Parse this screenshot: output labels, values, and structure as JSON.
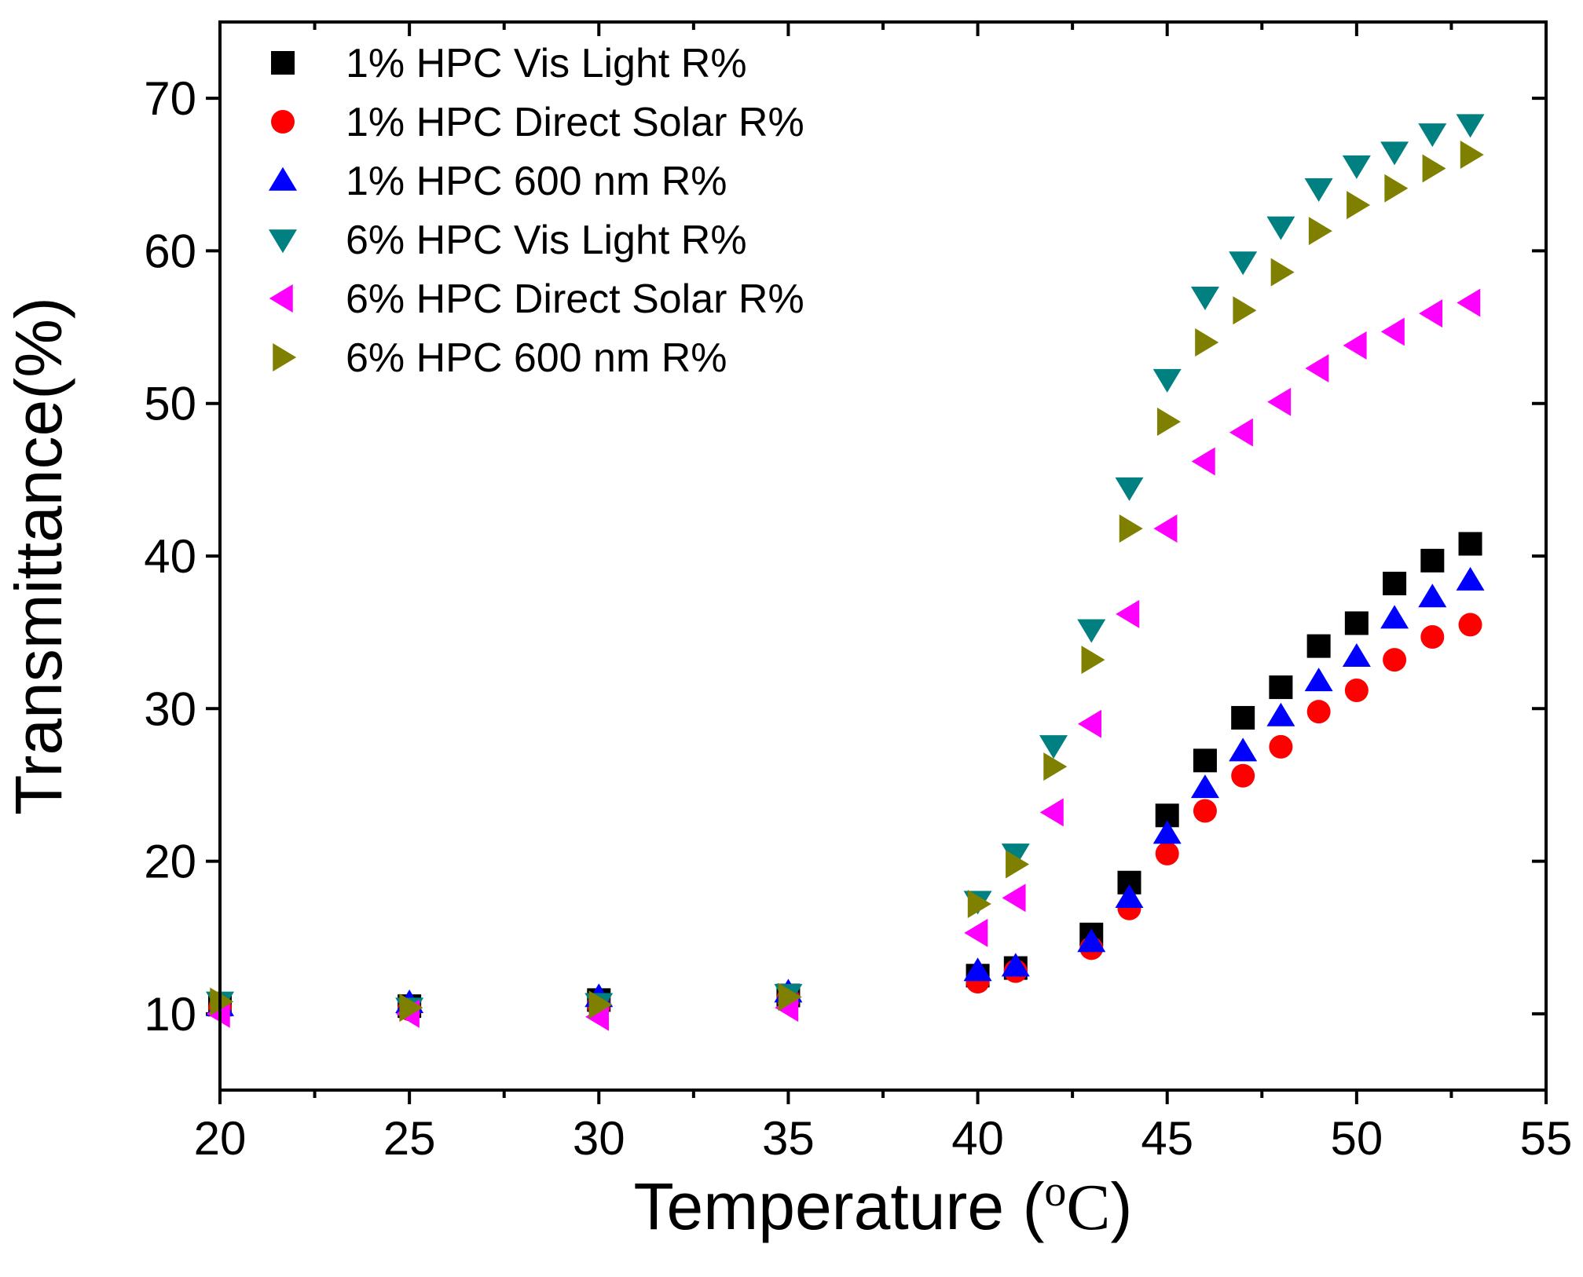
{
  "chart_data": {
    "type": "scatter",
    "xlabel": "Temperature (",
    "xlabel_unit_sup": "o",
    "xlabel_unit": "C",
    "xlabel_close": ")",
    "ylabel": "Transmittance(%)",
    "xlim": [
      20,
      55
    ],
    "ylim": [
      5,
      75
    ],
    "x_ticks": [
      20,
      25,
      30,
      35,
      40,
      45,
      50,
      55
    ],
    "y_ticks": [
      10,
      20,
      30,
      40,
      50,
      60,
      70
    ],
    "legend_position": "top-left",
    "x": [
      20,
      25,
      30,
      35,
      40,
      41,
      43,
      44,
      45,
      46,
      47,
      48,
      49,
      50,
      51,
      52,
      53
    ],
    "series": [
      {
        "name": "1% HPC Vis Light R%",
        "marker": "square",
        "color": "#000000",
        "values": [
          10.6,
          10.5,
          10.9,
          11.2,
          12.5,
          13.0,
          15.2,
          18.6,
          23.0,
          26.6,
          29.4,
          31.4,
          34.1,
          35.6,
          38.2,
          39.7,
          40.8
        ]
      },
      {
        "name": "1% HPC Direct Solar R%",
        "marker": "circle",
        "color": "#ff0000",
        "values": [
          10.4,
          10.3,
          10.6,
          11.0,
          12.1,
          12.8,
          14.3,
          16.9,
          20.5,
          23.3,
          25.6,
          27.5,
          29.8,
          31.2,
          33.2,
          34.7,
          35.5
        ]
      },
      {
        "name": "1% HPC 600 nm R%",
        "marker": "triangle-up",
        "color": "#0000ff",
        "values": [
          10.5,
          10.7,
          11.1,
          11.4,
          12.8,
          13.1,
          14.7,
          17.6,
          21.8,
          24.8,
          27.2,
          29.5,
          31.8,
          33.4,
          35.9,
          37.3,
          38.4
        ]
      },
      {
        "name": "6% HPC Vis Light R%",
        "marker": "triangle-down",
        "color": "#008080",
        "values": [
          10.8,
          10.4,
          10.7,
          11.3,
          17.4,
          20.5,
          35.2,
          44.5,
          51.6,
          57.0,
          59.3,
          61.6,
          64.1,
          65.6,
          66.5,
          67.7,
          68.3
        ]
      },
      {
        "name": "6% HPC Direct Solar R%",
        "marker": "triangle-left",
        "color": "#ff00ff",
        "values": [
          10.0,
          10.0,
          9.8,
          10.4,
          15.3,
          17.6,
          29.0,
          36.2,
          41.8,
          46.2,
          48.1,
          50.1,
          52.3,
          53.8,
          54.7,
          55.9,
          56.6
        ]
      },
      {
        "name": "6% HPC 600 nm R%",
        "marker": "triangle-right",
        "color": "#808000",
        "values": [
          10.8,
          10.4,
          10.6,
          11.1,
          17.2,
          19.8,
          33.2,
          41.8,
          48.8,
          54.0,
          56.1,
          58.6,
          61.3,
          63.0,
          64.1,
          65.4,
          66.3
        ]
      }
    ],
    "extra_points": [
      {
        "series": 3,
        "x": 42,
        "y": 27.6
      },
      {
        "series": 4,
        "x": 42,
        "y": 23.2
      },
      {
        "series": 5,
        "x": 42,
        "y": 26.2
      }
    ]
  }
}
